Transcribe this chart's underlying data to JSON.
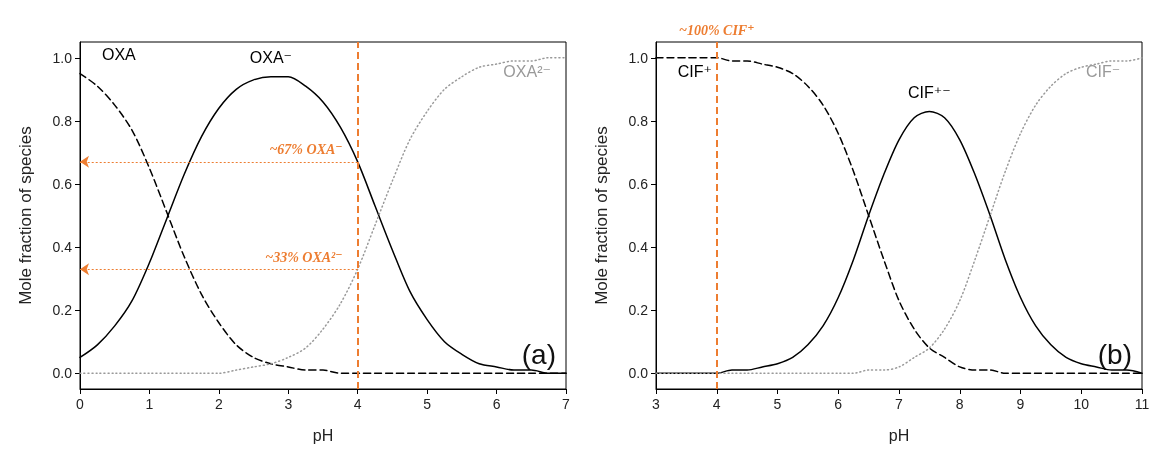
{
  "chart_data": [
    {
      "type": "line",
      "xlabel": "pH",
      "ylabel": "Mole fraction of species",
      "x": [
        0,
        0.25,
        0.5,
        0.75,
        1,
        1.25,
        1.5,
        1.75,
        2,
        2.25,
        2.5,
        2.75,
        3,
        3.25,
        3.5,
        3.75,
        4,
        4.25,
        4.5,
        4.75,
        5,
        5.25,
        5.5,
        5.75,
        6,
        6.25,
        6.5,
        6.75,
        7
      ],
      "series": [
        {
          "name": "OXA",
          "color": "#000000",
          "line_style": "dashed",
          "values": [
            0.95,
            0.91,
            0.85,
            0.77,
            0.65,
            0.51,
            0.37,
            0.25,
            0.16,
            0.09,
            0.05,
            0.03,
            0.02,
            0.01,
            0.01,
            0,
            0,
            0,
            0,
            0,
            0,
            0,
            0,
            0,
            0,
            0,
            0,
            0,
            0
          ]
        },
        {
          "name": "OXA⁻",
          "color": "#000000",
          "line_style": "solid",
          "values": [
            0.05,
            0.09,
            0.15,
            0.23,
            0.35,
            0.49,
            0.63,
            0.75,
            0.84,
            0.9,
            0.93,
            0.94,
            0.94,
            0.91,
            0.86,
            0.78,
            0.67,
            0.53,
            0.39,
            0.26,
            0.17,
            0.1,
            0.06,
            0.03,
            0.02,
            0.01,
            0.01,
            0,
            0
          ]
        },
        {
          "name": "OXA²⁻",
          "color": "#999999",
          "line_style": "dotted",
          "values": [
            0,
            0,
            0,
            0,
            0,
            0,
            0,
            0,
            0,
            0.01,
            0.02,
            0.03,
            0.05,
            0.08,
            0.14,
            0.22,
            0.33,
            0.47,
            0.61,
            0.74,
            0.83,
            0.9,
            0.94,
            0.97,
            0.98,
            0.99,
            0.99,
            1,
            1
          ]
        }
      ],
      "xlim": [
        0,
        7
      ],
      "xticks": [
        0,
        1,
        2,
        3,
        4,
        5,
        6,
        7
      ],
      "ylim": [
        -0.05,
        1.05
      ],
      "yticks": [
        {
          "value": 0,
          "label": "0.0"
        },
        {
          "value": 0.2,
          "label": "0.2"
        },
        {
          "value": 0.4,
          "label": "0.4"
        },
        {
          "value": 0.6,
          "label": "0.6"
        },
        {
          "value": 0.8,
          "label": "0.8"
        },
        {
          "value": 1,
          "label": "1.0"
        }
      ],
      "ref_lines": [
        {
          "axis": "x",
          "value": 4,
          "color": "#ed7d31",
          "line_style": "dashed"
        }
      ],
      "annotations": [
        {
          "text": "~67% OXA⁻",
          "x": 4,
          "y": 0.67
        },
        {
          "text": "~33% OXA²⁻",
          "x": 4,
          "y": 0.33
        },
        "(a)"
      ],
      "marker": "none",
      "grid": false,
      "legend": false
    },
    {
      "type": "line",
      "xlabel": "pH",
      "ylabel": "Mole fraction of species",
      "x": [
        3,
        3.25,
        3.5,
        3.75,
        4,
        4.25,
        4.5,
        4.75,
        5,
        5.25,
        5.5,
        5.75,
        6,
        6.25,
        6.5,
        6.75,
        7,
        7.25,
        7.5,
        7.75,
        8,
        8.25,
        8.5,
        8.75,
        9,
        9.25,
        9.5,
        9.75,
        10,
        10.25,
        10.5,
        10.75,
        11
      ],
      "series": [
        {
          "name": "CIF⁺",
          "color": "#000000",
          "line_style": "dashed",
          "values": [
            1,
            1,
            1,
            1,
            1,
            0.99,
            0.99,
            0.98,
            0.97,
            0.95,
            0.91,
            0.85,
            0.76,
            0.64,
            0.5,
            0.36,
            0.23,
            0.14,
            0.08,
            0.05,
            0.02,
            0.01,
            0.01,
            0,
            0,
            0,
            0,
            0,
            0,
            0,
            0,
            0,
            0
          ]
        },
        {
          "name": "CIF⁺⁻",
          "color": "#000000",
          "line_style": "solid",
          "values": [
            0,
            0,
            0,
            0,
            0,
            0.01,
            0.01,
            0.02,
            0.03,
            0.05,
            0.09,
            0.15,
            0.24,
            0.36,
            0.5,
            0.63,
            0.74,
            0.81,
            0.83,
            0.81,
            0.74,
            0.63,
            0.5,
            0.36,
            0.24,
            0.15,
            0.09,
            0.05,
            0.03,
            0.02,
            0.01,
            0.01,
            0
          ]
        },
        {
          "name": "CIF⁻",
          "color": "#999999",
          "line_style": "dotted",
          "values": [
            0,
            0,
            0,
            0,
            0,
            0,
            0,
            0,
            0,
            0,
            0,
            0,
            0,
            0,
            0.01,
            0.01,
            0.02,
            0.05,
            0.08,
            0.14,
            0.23,
            0.36,
            0.5,
            0.64,
            0.76,
            0.85,
            0.91,
            0.95,
            0.97,
            0.98,
            0.99,
            0.99,
            1
          ]
        }
      ],
      "xlim": [
        3,
        11
      ],
      "xticks": [
        3,
        4,
        5,
        6,
        7,
        8,
        9,
        10,
        11
      ],
      "ylim": [
        -0.05,
        1.05
      ],
      "yticks": [
        {
          "value": 0,
          "label": "0.0"
        },
        {
          "value": 0.2,
          "label": "0.2"
        },
        {
          "value": 0.4,
          "label": "0.4"
        },
        {
          "value": 0.6,
          "label": "0.6"
        },
        {
          "value": 0.8,
          "label": "0.8"
        },
        {
          "value": 1,
          "label": "1.0"
        }
      ],
      "ref_lines": [
        {
          "axis": "x",
          "value": 4,
          "label": "~100% CIF⁺",
          "color": "#ed7d31",
          "line_style": "dashed"
        }
      ],
      "annotations": [
        "(b)"
      ],
      "marker": "none",
      "grid": false,
      "legend": false
    }
  ]
}
